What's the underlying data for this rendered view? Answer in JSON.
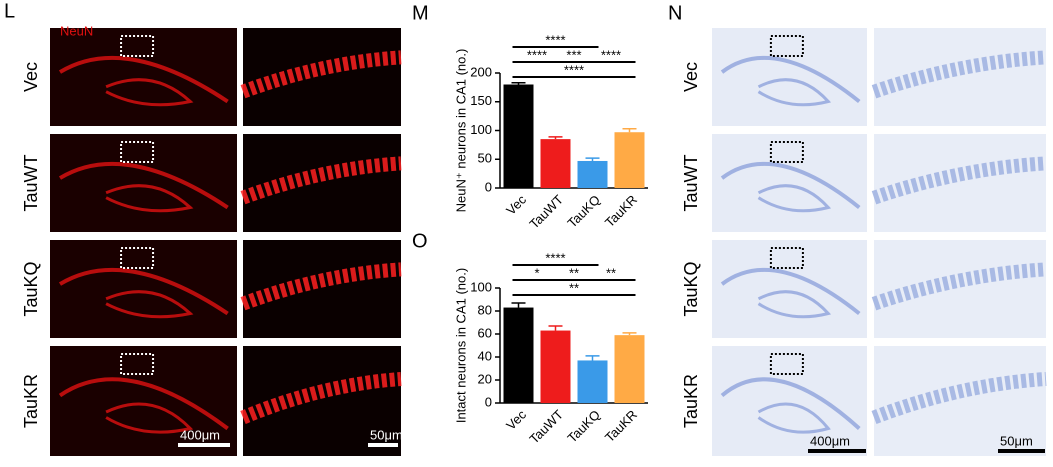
{
  "figure": {
    "panels": [
      "L",
      "M",
      "N",
      "O"
    ],
    "stain": "NeuN",
    "rows": [
      "Vec",
      "TauWT",
      "TauKQ",
      "TauKR"
    ],
    "scale_bars": [
      "400μm",
      "50μm",
      "400μm",
      "50μm"
    ]
  },
  "chart_data": [
    {
      "type": "bar",
      "ylabel": "NeuN⁺ neurons in CA1 (no.)",
      "categories": [
        "Vec",
        "TauWT",
        "TauKQ",
        "TauKR"
      ],
      "values": [
        180,
        85,
        47,
        97
      ],
      "errors": [
        3,
        4,
        5,
        6
      ],
      "colors": [
        "#000000",
        "#ee1c1c",
        "#3a9ae8",
        "#ffaa45"
      ],
      "ylim": [
        0,
        200
      ],
      "yticks": [
        0,
        50,
        100,
        150,
        200
      ],
      "annotations": [
        "****",
        "****",
        "***",
        "****",
        "****"
      ]
    },
    {
      "type": "bar",
      "ylabel": "Intact neurons in CA1 (no.)",
      "categories": [
        "Vec",
        "TauWT",
        "TauKQ",
        "TauKR"
      ],
      "values": [
        83,
        63,
        37,
        59
      ],
      "errors": [
        4,
        4,
        4,
        2
      ],
      "colors": [
        "#000000",
        "#ee1c1c",
        "#3a9ae8",
        "#ffaa45"
      ],
      "ylim": [
        0,
        100
      ],
      "yticks": [
        0,
        20,
        40,
        60,
        80,
        100
      ],
      "annotations": [
        "****",
        "*",
        "**",
        "**",
        "**"
      ]
    }
  ]
}
